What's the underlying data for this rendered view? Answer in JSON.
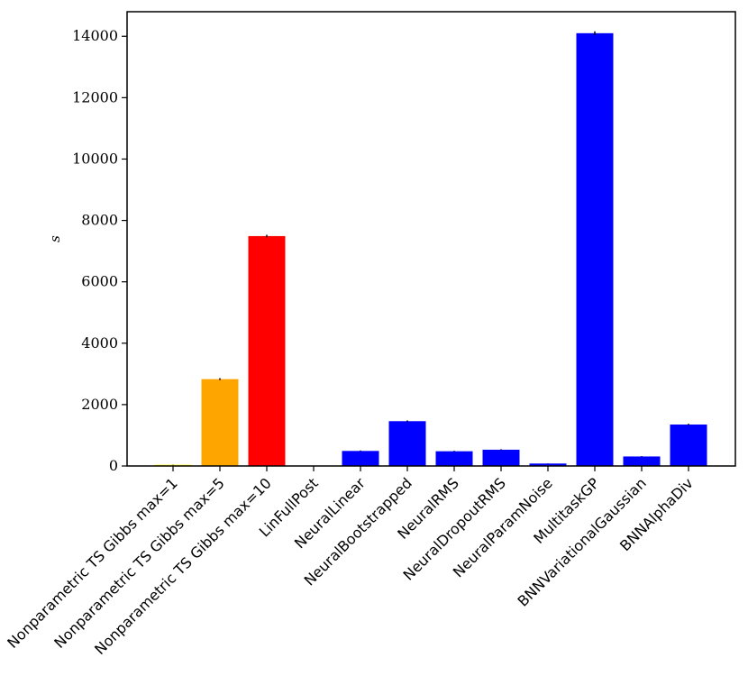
{
  "chart_data": {
    "type": "bar",
    "title": "",
    "xlabel": "",
    "ylabel": "s",
    "ylim": [
      0,
      14800
    ],
    "yticks": [
      0,
      2000,
      4000,
      6000,
      8000,
      10000,
      12000,
      14000
    ],
    "grid": false,
    "categories": [
      "Nonparametric TS Gibbs max=1",
      "Nonparametric TS Gibbs max=5",
      "Nonparametric TS Gibbs max=10",
      "LinFullPost",
      "NeuralLinear",
      "NeuralBootstrapped",
      "NeuralRMS",
      "NeuralDropoutRMS",
      "NeuralParamNoise",
      "MultitaskGP",
      "BNNVariationalGaussian",
      "BNNAlphaDiv"
    ],
    "values": [
      40,
      2830,
      7490,
      5,
      490,
      1460,
      480,
      530,
      80,
      14100,
      310,
      1350
    ],
    "errors": [
      5,
      30,
      40,
      2,
      15,
      25,
      15,
      15,
      5,
      60,
      10,
      25
    ],
    "colors": [
      "#ffff00",
      "#ffa500",
      "#ff0000",
      "#0000ff",
      "#0000ff",
      "#0000ff",
      "#0000ff",
      "#0000ff",
      "#0000ff",
      "#0000ff",
      "#0000ff",
      "#0000ff"
    ]
  }
}
